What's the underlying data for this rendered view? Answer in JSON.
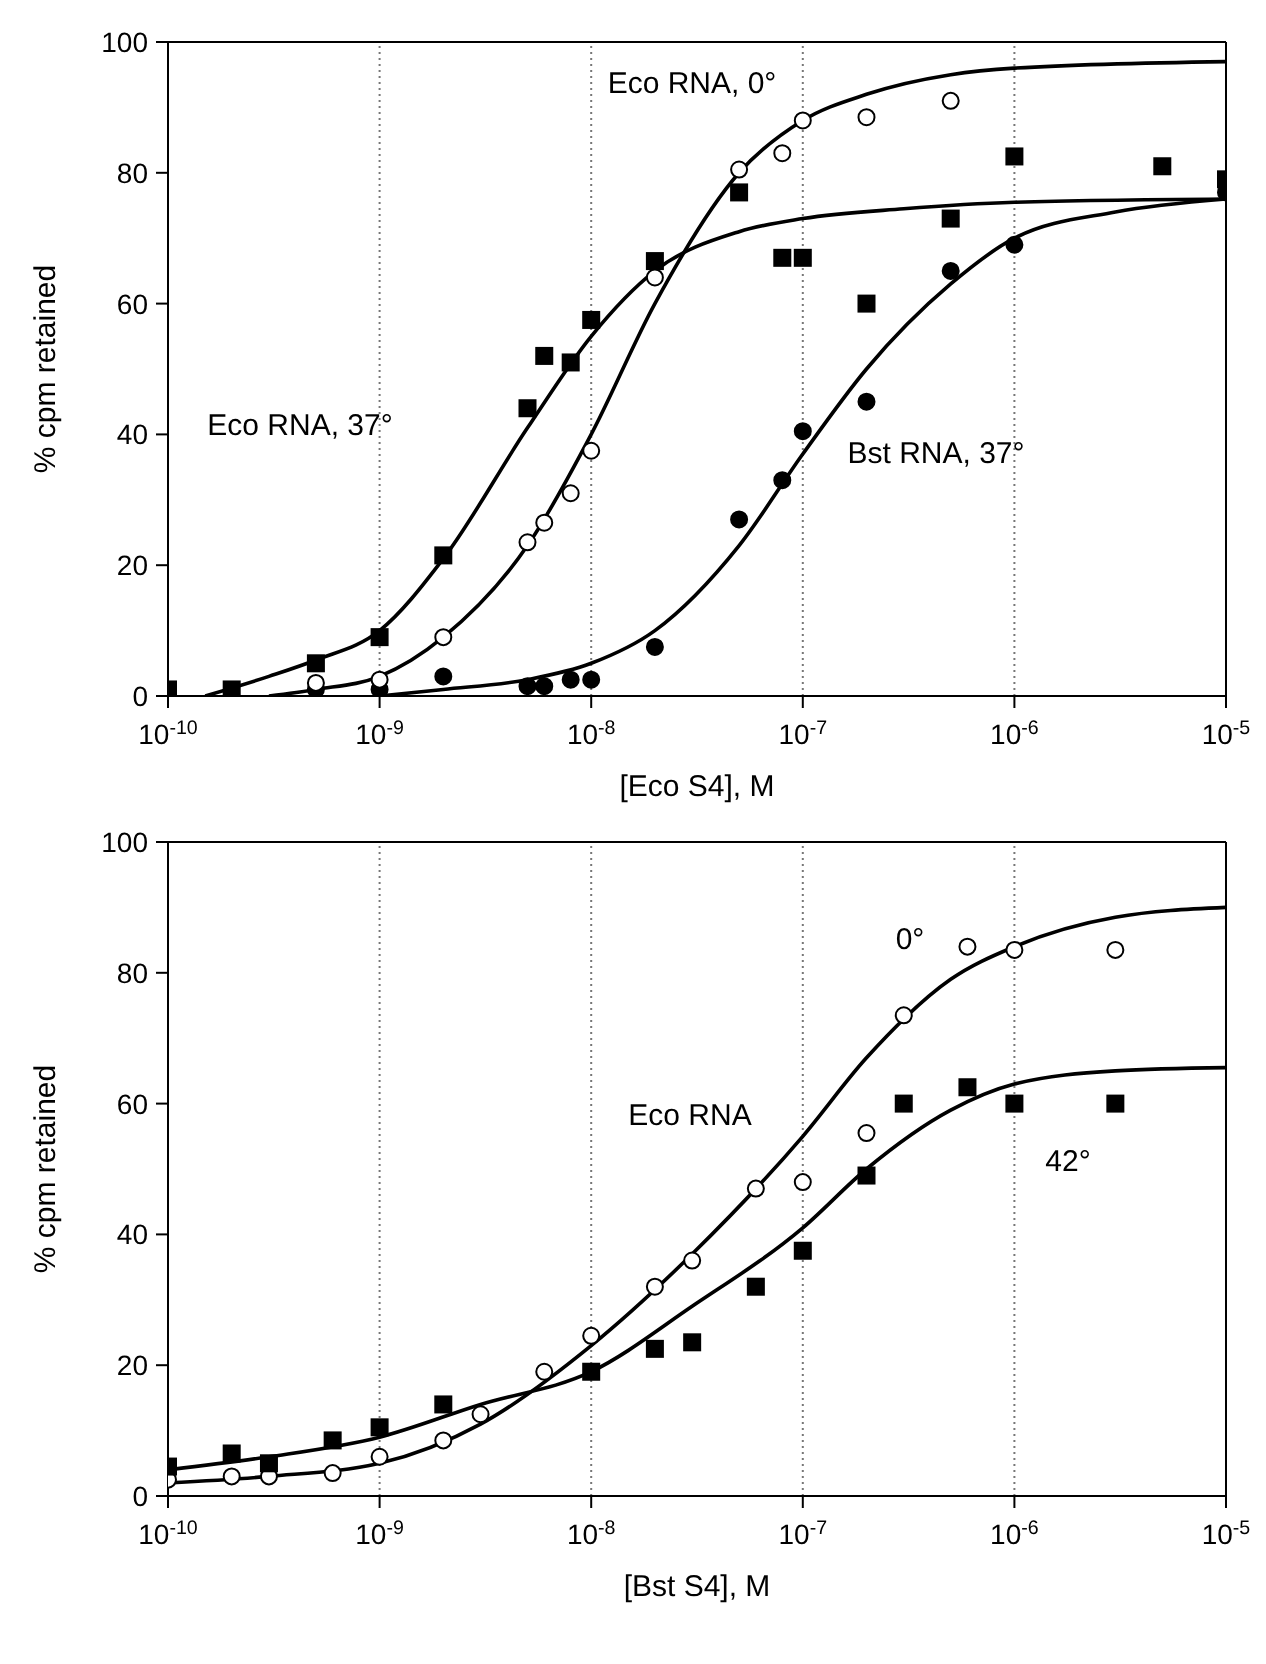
{
  "chart_data": [
    {
      "type": "scatter",
      "xlabel": "[Eco S4], M",
      "ylabel": "% cpm retained",
      "log": "x",
      "grid": "x",
      "xlim": [
        1e-10,
        1e-05
      ],
      "xticks": [
        {
          "value": 1e-10,
          "label": "10$^{-10}$"
        },
        {
          "value": 1e-09,
          "label": "10$^{-9}$"
        },
        {
          "value": 1e-08,
          "label": "10$^{-8}$"
        },
        {
          "value": 1e-07,
          "label": "10$^{-7}$"
        },
        {
          "value": 1e-06,
          "label": "10$^{-6}$"
        },
        {
          "value": 1e-05,
          "label": "10$^{-5}$"
        }
      ],
      "ylim": [
        0,
        100
      ],
      "yticks": [
        0,
        20,
        40,
        60,
        80,
        100
      ],
      "series": [
        {
          "marker": "square",
          "color": "#000000",
          "x": [
            1e-10,
            2e-10,
            5e-10,
            1e-09,
            2e-09,
            5e-09,
            6e-09,
            8e-09,
            1e-08,
            2e-08,
            5e-08,
            8e-08,
            1e-07,
            2e-07,
            5e-07,
            1e-06,
            5e-06,
            1e-05
          ],
          "values": [
            1,
            1,
            5,
            9,
            21.5,
            44,
            52,
            51,
            57.5,
            66.5,
            77,
            67,
            67,
            60,
            73,
            82.5,
            81,
            79
          ]
        },
        {
          "marker": "circle",
          "color": "#000000",
          "x": [
            5e-10,
            1e-09,
            2e-09,
            5e-09,
            6e-09,
            8e-09,
            1e-08,
            2e-08,
            5e-08,
            8e-08,
            1e-07,
            2e-07,
            5e-07,
            1e-06,
            1e-05
          ],
          "values": [
            1,
            1,
            3,
            1.5,
            1.5,
            2.5,
            2.5,
            7.5,
            27,
            33,
            40.5,
            45,
            65,
            69,
            77
          ]
        },
        {
          "marker": "circle",
          "color": "#ffffff",
          "x": [
            5e-10,
            1e-09,
            2e-09,
            5e-09,
            6e-09,
            8e-09,
            1e-08,
            2e-08,
            5e-08,
            8e-08,
            1e-07,
            2e-07,
            5e-07
          ],
          "values": [
            2,
            2.5,
            9,
            23.5,
            26.5,
            31,
            37.5,
            64,
            80.5,
            83,
            88,
            88.5,
            91
          ]
        },
        {
          "type": "line",
          "marker": "none",
          "color": "#000000",
          "x": [
            1.5e-10,
            3e-10,
            5e-10,
            1e-09,
            2e-09,
            5e-09,
            1e-08,
            2e-08,
            5e-08,
            1e-07,
            3e-07,
            1e-06,
            1e-05
          ],
          "values": [
            0,
            3,
            5.5,
            10,
            21,
            41,
            55,
            65,
            71,
            73,
            74.5,
            75.5,
            76
          ]
        },
        {
          "type": "line",
          "marker": "none",
          "color": "#000000",
          "x": [
            3e-10,
            5e-10,
            1e-09,
            2e-09,
            5e-09,
            1e-08,
            2e-08,
            5e-08,
            1e-07,
            2e-07,
            5e-07,
            1e-06,
            1e-05
          ],
          "values": [
            0,
            1,
            3,
            9,
            23,
            40,
            60,
            80,
            88,
            92,
            95,
            96,
            97
          ]
        },
        {
          "type": "line",
          "marker": "none",
          "color": "#000000",
          "x": [
            1e-09,
            2e-09,
            5e-09,
            1e-08,
            2e-08,
            5e-08,
            1e-07,
            2e-07,
            5e-07,
            1e-06,
            3e-06,
            1e-05
          ],
          "values": [
            0,
            1,
            2.5,
            5,
            10,
            23,
            37,
            50,
            63,
            70,
            74,
            76
          ]
        }
      ],
      "annotations": [
        "Eco RNA, 0°",
        "Eco RNA, 37°",
        "Bst RNA, 37°"
      ]
    },
    {
      "type": "scatter",
      "xlabel": "[Bst S4], M",
      "ylabel": "% cpm retained",
      "log": "x",
      "grid": "x",
      "xlim": [
        1e-10,
        1e-05
      ],
      "xticks": [
        {
          "value": 1e-10,
          "label": "10$^{-10}$"
        },
        {
          "value": 1e-09,
          "label": "10$^{-9}$"
        },
        {
          "value": 1e-08,
          "label": "10$^{-8}$"
        },
        {
          "value": 1e-07,
          "label": "10$^{-7}$"
        },
        {
          "value": 1e-06,
          "label": "10$^{-6}$"
        },
        {
          "value": 1e-05,
          "label": "10$^{-5}$"
        }
      ],
      "ylim": [
        0,
        100
      ],
      "yticks": [
        0,
        20,
        40,
        60,
        80,
        100
      ],
      "series": [
        {
          "marker": "circle",
          "color": "#ffffff",
          "x": [
            1e-10,
            2e-10,
            3e-10,
            6e-10,
            1e-09,
            2e-09,
            3e-09,
            6e-09,
            1e-08,
            2e-08,
            3e-08,
            6e-08,
            1e-07,
            2e-07,
            3e-07,
            6e-07,
            1e-06,
            3e-06
          ],
          "values": [
            2.5,
            3,
            3,
            3.5,
            6,
            8.5,
            12.5,
            19,
            24.5,
            32,
            36,
            47,
            48,
            55.5,
            73.5,
            84,
            83.5,
            83.5
          ]
        },
        {
          "marker": "square",
          "color": "#000000",
          "x": [
            1e-10,
            2e-10,
            3e-10,
            6e-10,
            1e-09,
            2e-09,
            1e-08,
            2e-08,
            3e-08,
            6e-08,
            1e-07,
            2e-07,
            3e-07,
            6e-07,
            1e-06,
            3e-06
          ],
          "values": [
            4.5,
            6.5,
            5,
            8.5,
            10.5,
            14,
            19,
            22.5,
            23.5,
            32,
            37.5,
            49,
            60,
            62.5,
            60,
            60
          ]
        },
        {
          "type": "line",
          "marker": "none",
          "color": "#000000",
          "x": [
            1e-10,
            3e-10,
            1e-09,
            3e-09,
            1e-08,
            3e-08,
            1e-07,
            2e-07,
            5e-07,
            1e-06,
            3e-06,
            1e-05
          ],
          "values": [
            2,
            3,
            5,
            11,
            23,
            37,
            55,
            67,
            79,
            84,
            88.5,
            90
          ]
        },
        {
          "type": "line",
          "marker": "none",
          "color": "#000000",
          "x": [
            1e-10,
            3e-10,
            1e-09,
            3e-09,
            1e-08,
            3e-08,
            1e-07,
            2e-07,
            5e-07,
            1e-06,
            3e-06,
            1e-05
          ],
          "values": [
            4,
            6,
            9,
            14,
            19,
            29,
            41,
            50,
            59,
            63,
            65,
            65.5
          ]
        }
      ],
      "annotations": [
        "0°",
        "Eco RNA",
        "42°"
      ]
    }
  ]
}
